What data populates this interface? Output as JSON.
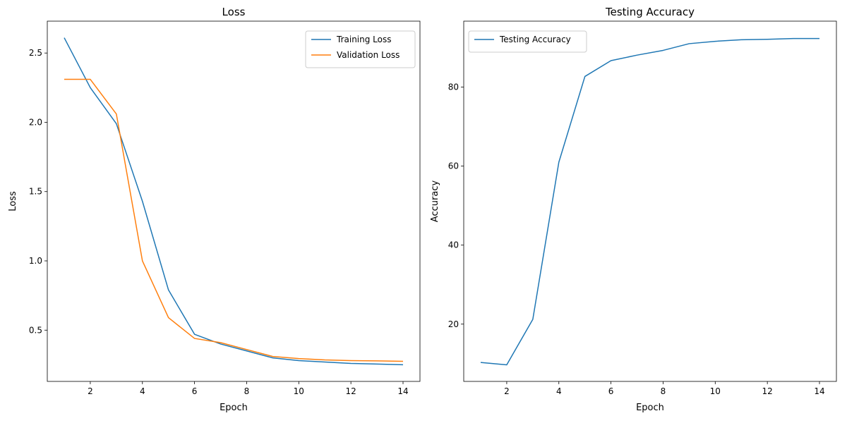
{
  "chart_data": [
    {
      "type": "line",
      "title": "Loss",
      "xlabel": "Epoch",
      "ylabel": "Loss",
      "xlim": [
        0.35,
        14.65
      ],
      "ylim": [
        0.13,
        2.73
      ],
      "xticks": [
        2,
        4,
        6,
        8,
        10,
        12,
        14
      ],
      "yticks": [
        0.5,
        1.0,
        1.5,
        2.0,
        2.5
      ],
      "ytick_labels": [
        "0.5",
        "1.0",
        "1.5",
        "2.0",
        "2.5"
      ],
      "legend_position": "top-right",
      "x": [
        1,
        2,
        3,
        4,
        5,
        6,
        7,
        8,
        9,
        10,
        11,
        12,
        13,
        14
      ],
      "series": [
        {
          "name": "Training Loss",
          "color": "#1f77b4",
          "values": [
            2.61,
            2.25,
            1.99,
            1.43,
            0.79,
            0.47,
            0.4,
            0.35,
            0.3,
            0.28,
            0.27,
            0.26,
            0.255,
            0.25
          ]
        },
        {
          "name": "Validation Loss",
          "color": "#ff7f0e",
          "values": [
            2.31,
            2.31,
            2.06,
            1.0,
            0.59,
            0.44,
            0.41,
            0.36,
            0.31,
            0.295,
            0.285,
            0.28,
            0.278,
            0.275
          ]
        }
      ]
    },
    {
      "type": "line",
      "title": "Testing Accuracy",
      "xlabel": "Epoch",
      "ylabel": "Accuracy",
      "xlim": [
        0.35,
        14.65
      ],
      "ylim": [
        5.5,
        96.7
      ],
      "xticks": [
        2,
        4,
        6,
        8,
        10,
        12,
        14
      ],
      "yticks": [
        20,
        40,
        60,
        80
      ],
      "ytick_labels": [
        "20",
        "40",
        "60",
        "80"
      ],
      "legend_position": "top-left",
      "x": [
        1,
        2,
        3,
        4,
        5,
        6,
        7,
        8,
        9,
        10,
        11,
        12,
        13,
        14
      ],
      "series": [
        {
          "name": "Testing Accuracy",
          "color": "#1f77b4",
          "values": [
            10.3,
            9.7,
            21.2,
            61.0,
            82.7,
            86.7,
            88.1,
            89.3,
            91.0,
            91.6,
            92.0,
            92.1,
            92.3,
            92.3
          ]
        }
      ]
    }
  ]
}
